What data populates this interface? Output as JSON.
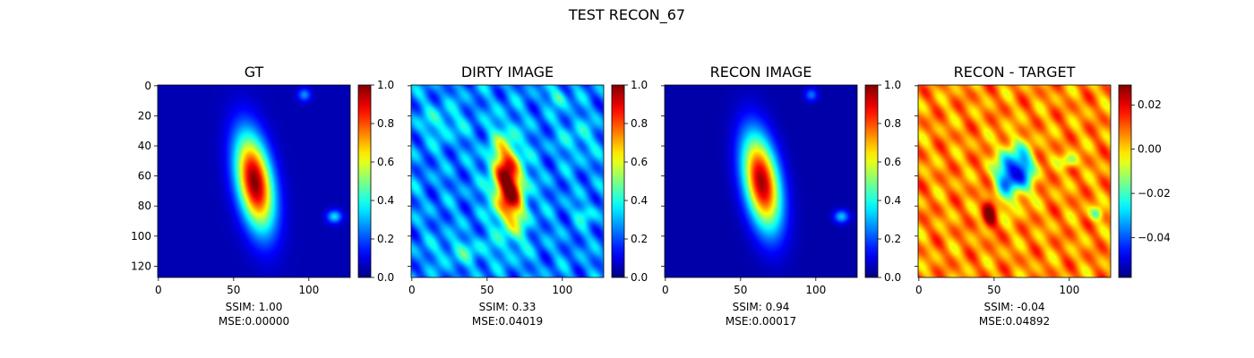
{
  "figure_title": "TEST RECON_67",
  "colormap": "jet",
  "chart_data": [
    {
      "type": "heatmap",
      "title": "GT",
      "metrics_ssim": "SSIM: 1.00",
      "metrics_mse": "MSE:0.00000",
      "grid_size": 128,
      "x_ticks": [
        0,
        50,
        100
      ],
      "y_ticks": [
        0,
        20,
        40,
        60,
        80,
        100,
        120
      ],
      "y_tick_labels_visible": true,
      "colorbar": {
        "range": [
          0,
          1
        ],
        "ticks": [
          0.0,
          0.2,
          0.4,
          0.6,
          0.8,
          1.0
        ],
        "tick_labels": [
          "0.0",
          "0.2",
          "0.4",
          "0.6",
          "0.8",
          "1.0"
        ]
      },
      "background_level": 0.05,
      "features": [
        {
          "kind": "gaussian",
          "cx": 64,
          "cy": 64,
          "sx": 8,
          "sy": 22,
          "angle_deg": -10,
          "amp": 0.95
        },
        {
          "kind": "gaussian",
          "cx": 97,
          "cy": 6,
          "sx": 3,
          "sy": 3,
          "angle_deg": 0,
          "amp": 0.22
        },
        {
          "kind": "gaussian",
          "cx": 117,
          "cy": 87,
          "sx": 3.5,
          "sy": 3,
          "angle_deg": 0,
          "amp": 0.3
        }
      ]
    },
    {
      "type": "heatmap",
      "title": "DIRTY IMAGE",
      "metrics_ssim": "SSIM: 0.33",
      "metrics_mse": "MSE:0.04019",
      "grid_size": 128,
      "x_ticks": [
        0,
        50,
        100
      ],
      "y_ticks": [
        0,
        20,
        40,
        60,
        80,
        100,
        120
      ],
      "y_tick_labels_visible": false,
      "colorbar": {
        "range": [
          0,
          1
        ],
        "ticks": [
          0.0,
          0.2,
          0.4,
          0.6,
          0.8,
          1.0
        ],
        "tick_labels": [
          "0.0",
          "0.2",
          "0.4",
          "0.6",
          "0.8",
          "1.0"
        ]
      },
      "background_level": 0.25,
      "features": [
        {
          "kind": "gaussian",
          "cx": 64,
          "cy": 66,
          "sx": 7,
          "sy": 20,
          "angle_deg": -5,
          "amp": 0.8
        },
        {
          "kind": "gaussian",
          "cx": 97,
          "cy": 8,
          "sx": 4,
          "sy": 4,
          "angle_deg": 0,
          "amp": 0.2
        },
        {
          "kind": "gaussian",
          "cx": 115,
          "cy": 85,
          "sx": 5,
          "sy": 4,
          "angle_deg": 0,
          "amp": 0.15
        },
        {
          "kind": "gaussian",
          "cx": 20,
          "cy": 25,
          "sx": 10,
          "sy": 8,
          "angle_deg": 0,
          "amp": 0.12
        },
        {
          "kind": "gaussian",
          "cx": 35,
          "cy": 110,
          "sx": 14,
          "sy": 6,
          "angle_deg": 0,
          "amp": 0.12
        },
        {
          "kind": "gaussian",
          "cx": 110,
          "cy": 35,
          "sx": 8,
          "sy": 10,
          "angle_deg": 0,
          "amp": 0.1
        }
      ],
      "noise_amp": 0.14
    },
    {
      "type": "heatmap",
      "title": "RECON IMAGE",
      "metrics_ssim": "SSIM: 0.94",
      "metrics_mse": "MSE:0.00017",
      "grid_size": 128,
      "x_ticks": [
        0,
        50,
        100
      ],
      "y_ticks": [
        0,
        20,
        40,
        60,
        80,
        100,
        120
      ],
      "y_tick_labels_visible": false,
      "colorbar": {
        "range": [
          0,
          1
        ],
        "ticks": [
          0.0,
          0.2,
          0.4,
          0.6,
          0.8,
          1.0
        ],
        "tick_labels": [
          "0.0",
          "0.2",
          "0.4",
          "0.6",
          "0.8",
          "1.0"
        ]
      },
      "background_level": 0.04,
      "features": [
        {
          "kind": "gaussian",
          "cx": 64,
          "cy": 64,
          "sx": 8,
          "sy": 22,
          "angle_deg": -10,
          "amp": 0.93
        },
        {
          "kind": "gaussian",
          "cx": 97,
          "cy": 6,
          "sx": 3,
          "sy": 3,
          "angle_deg": 0,
          "amp": 0.2
        },
        {
          "kind": "gaussian",
          "cx": 117,
          "cy": 87,
          "sx": 3.5,
          "sy": 3,
          "angle_deg": 0,
          "amp": 0.28
        }
      ]
    },
    {
      "type": "heatmap",
      "title": "RECON - TARGET",
      "metrics_ssim": "SSIM: -0.04",
      "metrics_mse": "MSE:0.04892",
      "grid_size": 128,
      "x_ticks": [
        0,
        50,
        100
      ],
      "y_ticks": [
        0,
        20,
        40,
        60,
        80,
        100,
        120
      ],
      "y_tick_labels_visible": false,
      "colorbar": {
        "range": [
          -0.058,
          0.029
        ],
        "ticks": [
          0.02,
          0.0,
          -0.02,
          -0.04
        ],
        "tick_labels": [
          "0.02",
          "0.00",
          "−0.02",
          "−0.04"
        ]
      },
      "background_level": 0.0,
      "features": [
        {
          "kind": "gaussian",
          "cx": 60,
          "cy": 60,
          "sx": 6,
          "sy": 12,
          "angle_deg": 0,
          "amp": -0.05
        },
        {
          "kind": "gaussian",
          "cx": 70,
          "cy": 55,
          "sx": 5,
          "sy": 10,
          "angle_deg": 0,
          "amp": -0.035
        },
        {
          "kind": "gaussian",
          "cx": 47,
          "cy": 85,
          "sx": 3,
          "sy": 7,
          "angle_deg": 0,
          "amp": 0.025
        },
        {
          "kind": "gaussian",
          "cx": 62,
          "cy": 72,
          "sx": 4,
          "sy": 5,
          "angle_deg": 0,
          "amp": 0.01
        },
        {
          "kind": "gaussian",
          "cx": 118,
          "cy": 85,
          "sx": 3,
          "sy": 3,
          "angle_deg": 0,
          "amp": -0.025
        },
        {
          "kind": "gaussian",
          "cx": 100,
          "cy": 50,
          "sx": 4,
          "sy": 3,
          "angle_deg": 0,
          "amp": -0.02
        }
      ],
      "noise_amp": 0.012,
      "noise_offset": 0.006
    }
  ]
}
